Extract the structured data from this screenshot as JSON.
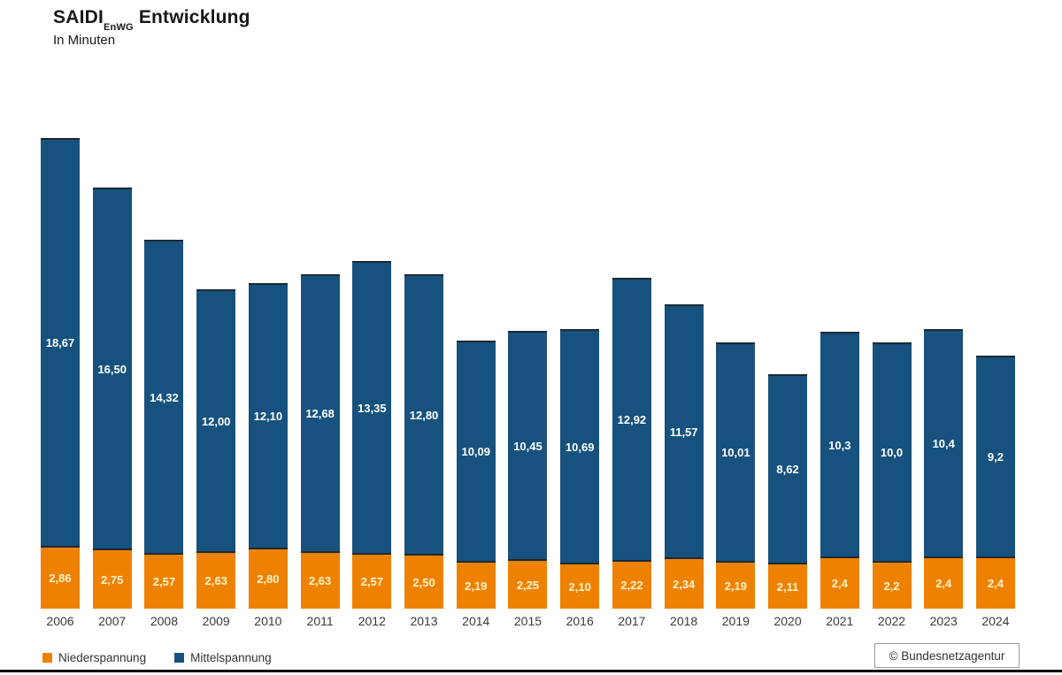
{
  "header": {
    "title_main": "SAIDI",
    "title_subscript": "EnWG",
    "title_rest": "Entwicklung",
    "subtitle": "In Minuten"
  },
  "chart_data": {
    "type": "bar",
    "stacked": true,
    "title": "SAIDI EnWG Entwicklung",
    "ylabel": "In Minuten",
    "ylim": [
      0,
      21.6
    ],
    "grid": false,
    "legend_position": "bottom-left",
    "categories": [
      "2006",
      "2007",
      "2008",
      "2009",
      "2010",
      "2011",
      "2012",
      "2013",
      "2014",
      "2015",
      "2016",
      "2017",
      "2018",
      "2019",
      "2020",
      "2021",
      "2022",
      "2023",
      "2024"
    ],
    "series": [
      {
        "name": "Niederspannung",
        "color": "#EE8200",
        "label_color": "#FFF3CF",
        "values": [
          2.86,
          2.75,
          2.57,
          2.63,
          2.8,
          2.63,
          2.57,
          2.5,
          2.19,
          2.25,
          2.1,
          2.22,
          2.34,
          2.19,
          2.11,
          2.4,
          2.2,
          2.4,
          2.4
        ],
        "labels": [
          "2,86",
          "2,75",
          "2,57",
          "2,63",
          "2,80",
          "2,63",
          "2,57",
          "2,50",
          "2,19",
          "2,25",
          "2,10",
          "2,22",
          "2,34",
          "2,19",
          "2,11",
          "2,4",
          "2,2",
          "2,4",
          "2,4"
        ]
      },
      {
        "name": "Mittelspannung",
        "color": "#16527D",
        "label_color": "#FFFFFF",
        "values": [
          18.67,
          16.5,
          14.32,
          12.0,
          12.1,
          12.68,
          13.35,
          12.8,
          10.09,
          10.45,
          10.69,
          12.92,
          11.57,
          10.01,
          8.62,
          10.3,
          10.0,
          10.4,
          9.2
        ],
        "labels": [
          "18,67",
          "16,50",
          "14,32",
          "12,00",
          "12,10",
          "12,68",
          "13,35",
          "12,80",
          "10,09",
          "10,45",
          "10,69",
          "12,92",
          "11,57",
          "10,01",
          "8,62",
          "10,3",
          "10,0",
          "10,4",
          "9,2"
        ]
      }
    ]
  },
  "footer": {
    "copyright": "© Bundesnetzagentur"
  }
}
